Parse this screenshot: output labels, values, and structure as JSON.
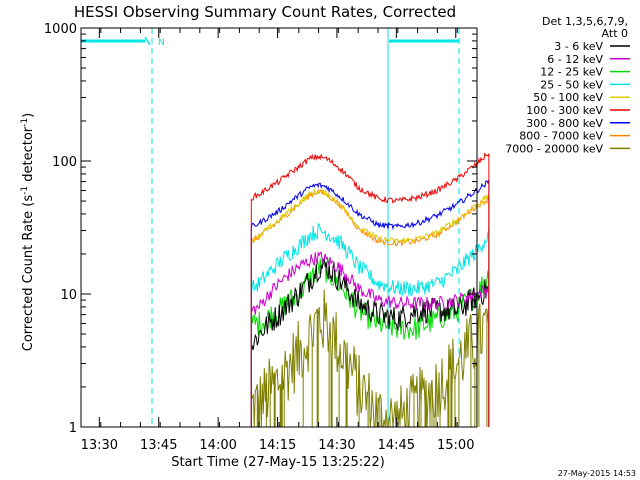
{
  "chart_data": {
    "type": "line",
    "title": "HESSI Observing Summary Count Rates, Corrected",
    "xlabel": "Start Time (27-May-15 13:25:22)",
    "ylabel_main": "Corrected Count Rate (s",
    "ylabel_sup1": "-1",
    "ylabel_mid": " detector",
    "ylabel_sup2": "-1",
    "ylabel_end": ")",
    "y_scale": "log",
    "ylim": [
      1,
      1000
    ],
    "xlim": [
      "13:25:22",
      "15:05:22"
    ],
    "x_ticks": [
      "13:30",
      "13:45",
      "14:00",
      "14:15",
      "14:30",
      "14:45",
      "15:00"
    ],
    "y_ticks": [
      "1",
      "10",
      "100",
      "1000"
    ],
    "legend_header": [
      "Det 1,3,5,6,7,9,",
      "Att 0"
    ],
    "annotation": "N",
    "timestamp": "27-May-2015 14:53",
    "x_minutes_for_series": [
      43,
      45,
      50,
      55,
      58,
      60,
      62,
      65,
      70,
      75,
      80,
      85,
      90,
      95,
      100,
      103
    ],
    "series": [
      {
        "name": "3 - 6 keV",
        "color": "#000000",
        "values": [
          4,
          5,
          7,
          10,
          13,
          16,
          16,
          13,
          8.5,
          7,
          6.5,
          7.5,
          7.5,
          7.5,
          9.5,
          11
        ]
      },
      {
        "name": "6 - 12 keV",
        "color": "#cc00cc",
        "values": [
          7.5,
          8,
          12,
          16,
          18,
          19,
          18,
          16,
          11,
          9,
          8.5,
          8.5,
          8.5,
          9,
          10,
          11
        ]
      },
      {
        "name": "12 - 25 keV",
        "color": "#00dd00",
        "values": [
          6,
          6,
          7.5,
          10,
          13,
          16,
          15,
          12,
          7.5,
          6,
          5.5,
          5.5,
          6.5,
          7.5,
          10,
          14
        ]
      },
      {
        "name": "25 - 50 keV",
        "color": "#00e5e5",
        "values": [
          11,
          12,
          17,
          23,
          28,
          30,
          29,
          25,
          16,
          12,
          11,
          11,
          12,
          15,
          21,
          28
        ]
      },
      {
        "name": "50 - 100 keV",
        "color": "#ddcc00",
        "values": [
          25,
          27,
          36,
          48,
          57,
          59,
          57,
          48,
          32,
          26,
          25,
          26,
          29,
          36,
          47,
          55
        ]
      },
      {
        "name": "100 - 300 keV",
        "color": "#ee0000",
        "values": [
          53,
          56,
          70,
          90,
          105,
          108,
          104,
          90,
          63,
          52,
          50,
          53,
          60,
          73,
          95,
          115
        ]
      },
      {
        "name": "300 - 800 keV",
        "color": "#0000ee",
        "values": [
          32,
          34,
          42,
          55,
          64,
          66,
          64,
          55,
          40,
          33,
          32,
          34,
          39,
          47,
          60,
          70
        ]
      },
      {
        "name": "800 - 7000 keV",
        "color": "#ff8800",
        "values": [
          25,
          27,
          35,
          47,
          56,
          59,
          56,
          48,
          31,
          25,
          24,
          25,
          28,
          35,
          46,
          52
        ]
      },
      {
        "name": "7000 - 20000 keV",
        "color": "#808000",
        "values": [
          1.4,
          1.5,
          2.2,
          3.5,
          5,
          6.5,
          6,
          4,
          2,
          1.2,
          1.1,
          1.5,
          2,
          3,
          4.5,
          6
        ]
      }
    ]
  }
}
